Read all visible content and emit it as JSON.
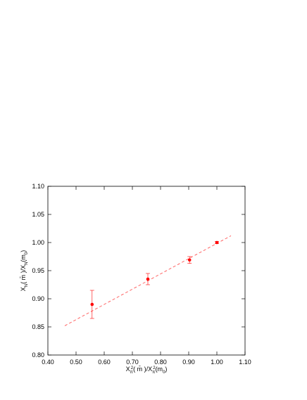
{
  "chart_data": {
    "type": "scatter",
    "x_label": [
      "X",
      "π",
      "2",
      "( m̄ )/X",
      "π",
      "2",
      "(m",
      "0",
      ")"
    ],
    "y_label": [
      "X",
      "N",
      "( m̄ )/X",
      "N",
      "(m",
      "0",
      ")"
    ],
    "xlim": [
      0.4,
      1.1
    ],
    "xticks": [
      {
        "value": 0.4,
        "label": "0.40"
      },
      {
        "value": 0.5,
        "label": "0.50"
      },
      {
        "value": 0.6,
        "label": "0.60"
      },
      {
        "value": 0.7,
        "label": "0.70"
      },
      {
        "value": 0.8,
        "label": "0.80"
      },
      {
        "value": 0.9,
        "label": "0.90"
      },
      {
        "value": 1.0,
        "label": "1.00"
      },
      {
        "value": 1.1,
        "label": "1.10"
      }
    ],
    "ylim": [
      0.8,
      1.1
    ],
    "yticks": [
      {
        "value": 0.8,
        "label": "0.80"
      },
      {
        "value": 0.85,
        "label": "0.85"
      },
      {
        "value": 0.9,
        "label": "0.90"
      },
      {
        "value": 0.95,
        "label": "0.95"
      },
      {
        "value": 1.0,
        "label": "1.00"
      },
      {
        "value": 1.05,
        "label": "1.05"
      },
      {
        "value": 1.1,
        "label": "1.10"
      }
    ],
    "x": [
      0.557,
      0.755,
      0.903,
      1.0
    ],
    "values": [
      0.89,
      0.935,
      0.969,
      1.0
    ],
    "errors": [
      0.025,
      0.01,
      0.006,
      0.002
    ],
    "color": "#ff0000",
    "fit": {
      "x": [
        0.46,
        1.05
      ],
      "values": [
        0.852,
        1.012
      ],
      "color": "#ff4444"
    }
  }
}
